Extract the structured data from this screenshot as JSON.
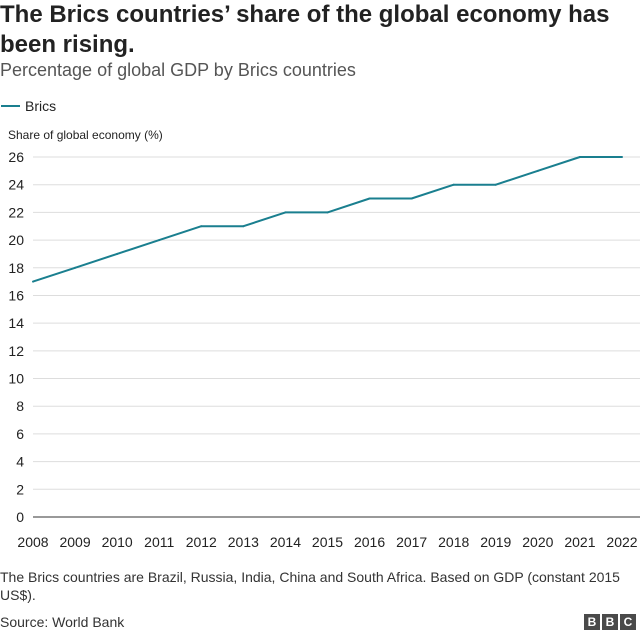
{
  "title": "The Brics countries’ share of the global economy has been rising.",
  "subtitle": "Percentage of global GDP by Brics countries",
  "footnote": "The Brics countries are Brazil, Russia, India, China and South Africa. Based on GDP (constant 2015 US$).",
  "source": "Source: World Bank",
  "logo": [
    "B",
    "B",
    "C"
  ],
  "colors": {
    "series": "#1a7f8f",
    "grid": "#dddddd",
    "axis": "#333333"
  },
  "chart_data": {
    "type": "line",
    "ylabel": "Share of global economy (%)",
    "xlabel": "",
    "ylim": [
      0,
      26
    ],
    "yticks": [
      0,
      2,
      4,
      6,
      8,
      10,
      12,
      14,
      16,
      18,
      20,
      22,
      24,
      26
    ],
    "grid": true,
    "legend": "top-left",
    "x": [
      2008,
      2009,
      2010,
      2011,
      2012,
      2013,
      2014,
      2015,
      2016,
      2017,
      2018,
      2019,
      2020,
      2021,
      2022
    ],
    "series": [
      {
        "name": "Brics",
        "values": [
          17,
          18,
          19,
          20,
          21,
          21,
          22,
          22,
          23,
          23,
          24,
          24,
          25,
          26,
          26
        ]
      }
    ]
  }
}
